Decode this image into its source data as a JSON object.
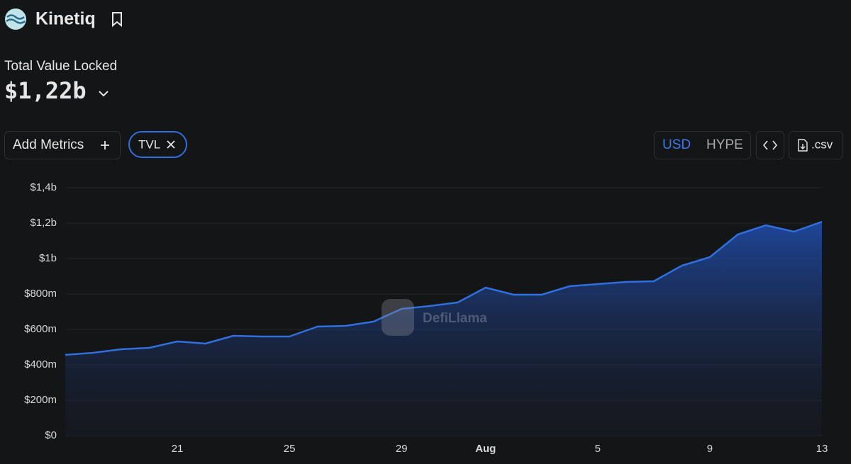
{
  "header": {
    "title": "Kinetiq",
    "metric_label": "Total Value Locked",
    "metric_value": "$1,22b"
  },
  "controls": {
    "add_metrics": "Add Metrics",
    "active_metric": "TVL",
    "currencies": [
      "USD",
      "HYPE"
    ],
    "export": ".csv"
  },
  "watermark": "DefiLlama",
  "chart_data": {
    "type": "area",
    "categories": [
      null,
      null,
      null,
      null,
      "21",
      null,
      null,
      null,
      "25",
      null,
      null,
      null,
      "29",
      null,
      null,
      "Aug",
      null,
      null,
      null,
      "5",
      null,
      null,
      null,
      "9",
      null,
      null,
      null,
      "13"
    ],
    "series": [
      {
        "name": "TVL",
        "color": "#2f6fde",
        "values": [
          456000000,
          468000000,
          488000000,
          496000000,
          532000000,
          520000000,
          564000000,
          560000000,
          560000000,
          616000000,
          620000000,
          644000000,
          716000000,
          732000000,
          752000000,
          836000000,
          796000000,
          796000000,
          844000000,
          856000000,
          868000000,
          872000000,
          960000000,
          1008000000,
          1136000000,
          1188000000,
          1152000000,
          1208000000
        ]
      }
    ],
    "ylim": [
      0,
      1400000000
    ],
    "yticks": [
      {
        "value": 0,
        "label": "$0"
      },
      {
        "value": 200000000,
        "label": "$200m"
      },
      {
        "value": 400000000,
        "label": "$400m"
      },
      {
        "value": 600000000,
        "label": "$600m"
      },
      {
        "value": 800000000,
        "label": "$800m"
      },
      {
        "value": 1000000000,
        "label": "$1b"
      },
      {
        "value": 1200000000,
        "label": "$1,2b"
      },
      {
        "value": 1400000000,
        "label": "$1,4b"
      }
    ],
    "grid": true
  }
}
